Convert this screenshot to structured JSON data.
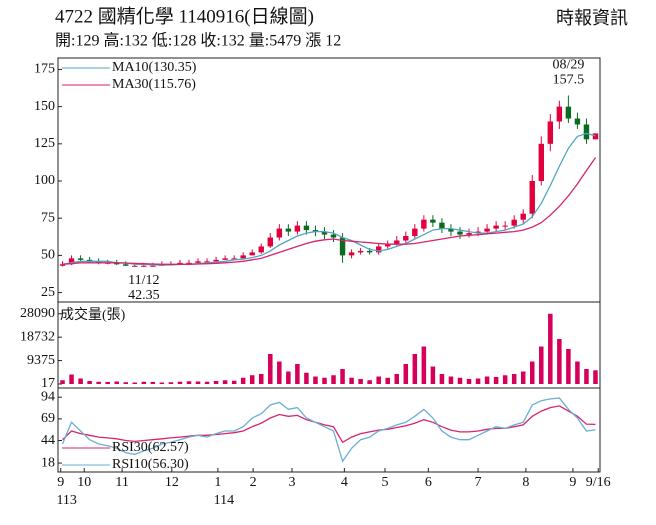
{
  "header": {
    "title": "4722  國精化學 1140916(日線圖)",
    "source": "時報資訊",
    "quote": "開:129 高:132 低:128 收:132 量:5479 漲 12"
  },
  "chart_data": [
    {
      "type": "candlestick",
      "up_color": "#e0003c",
      "down_color": "#0b6b1e",
      "open": [
        43,
        44,
        48,
        47,
        46,
        45,
        45,
        44,
        43,
        43,
        43,
        43,
        44,
        44,
        45,
        45,
        46,
        46,
        47,
        48,
        48,
        50,
        52,
        56,
        62,
        68,
        66,
        70,
        67,
        66,
        64,
        62,
        50,
        52,
        53,
        52,
        56,
        58,
        60,
        63,
        68,
        74,
        72,
        68,
        66,
        64,
        65,
        66,
        68,
        70,
        70,
        74,
        78,
        100,
        125,
        140,
        150,
        142,
        138,
        128
      ],
      "high": [
        46,
        50,
        50,
        49,
        48,
        47,
        47,
        46,
        45,
        45,
        45,
        46,
        46,
        47,
        47,
        48,
        48,
        49,
        50,
        50,
        52,
        54,
        58,
        65,
        71,
        71,
        73,
        73,
        70,
        69,
        67,
        65,
        54,
        55,
        55,
        58,
        60,
        63,
        66,
        71,
        77,
        77,
        75,
        71,
        69,
        68,
        69,
        71,
        73,
        73,
        77,
        81,
        104,
        130,
        145,
        154,
        157.5,
        146,
        142,
        132
      ],
      "low": [
        42.5,
        43.5,
        46,
        45,
        44,
        44,
        43.5,
        42.8,
        42.6,
        42.35,
        42.6,
        43,
        43.2,
        44,
        44,
        45,
        45,
        46,
        47,
        47,
        47.5,
        50.5,
        51,
        55,
        60,
        63,
        64,
        64,
        63,
        61,
        59,
        45,
        48,
        50.5,
        50.5,
        50.5,
        54.5,
        56.5,
        58.5,
        61,
        66,
        69,
        65,
        63,
        61,
        62,
        63,
        64,
        66,
        67,
        68,
        71,
        75,
        97,
        120,
        135,
        139,
        135,
        125,
        128
      ],
      "close": [
        44,
        48,
        47,
        46,
        45,
        45,
        44,
        43,
        43,
        43,
        43,
        44,
        44,
        45,
        45,
        46,
        46,
        47,
        48,
        48,
        50,
        52,
        56,
        62,
        68,
        66,
        70,
        67,
        66,
        64,
        62,
        50,
        52,
        53,
        52,
        56,
        58,
        60,
        63,
        68,
        74,
        72,
        68,
        66,
        64,
        65,
        66,
        68,
        70,
        70,
        74,
        78,
        100,
        125,
        140,
        150,
        142,
        138,
        128,
        132
      ],
      "series": [
        {
          "name": "MA10(130.35)",
          "color": "#4ea6c4",
          "values": [
            44,
            45,
            46,
            46,
            46,
            46,
            45,
            45,
            44,
            44,
            43.5,
            43.5,
            43.5,
            44,
            44,
            44.5,
            45,
            45.5,
            46,
            47,
            47.5,
            48.5,
            50,
            53,
            57,
            60,
            63,
            65,
            66,
            66,
            65,
            62,
            60,
            57,
            54,
            53,
            54,
            56,
            58,
            61,
            64,
            67,
            68,
            68,
            67,
            66,
            65,
            65,
            66,
            67,
            69,
            71,
            76,
            85,
            97,
            110,
            122,
            130,
            132,
            130.35
          ]
        },
        {
          "name": "MA30(115.76)",
          "color": "#d6246e",
          "values": [
            44,
            44.5,
            45,
            45,
            45,
            45,
            45,
            44.8,
            44.6,
            44.4,
            44.2,
            44,
            44,
            44,
            44,
            44.2,
            44.4,
            44.7,
            45,
            45.5,
            46,
            47,
            48,
            50,
            52,
            54,
            56,
            58,
            59.5,
            60.5,
            61,
            60,
            59.5,
            59,
            58.5,
            58,
            57.5,
            57.5,
            57.5,
            58,
            59,
            60,
            61,
            62,
            63,
            63.5,
            64,
            64.5,
            65,
            65.5,
            66,
            67,
            69,
            72,
            77,
            83,
            90,
            98,
            107,
            115.76
          ]
        }
      ],
      "annotations": [
        {
          "text": "08/29",
          "value": 157.5
        },
        {
          "text": "11/12",
          "value": 42.35
        }
      ],
      "xlim": [
        0,
        60
      ],
      "ylim": [
        20,
        180
      ],
      "yticks": [
        25,
        50,
        75,
        100,
        125,
        150,
        175
      ]
    },
    {
      "type": "bar",
      "title": "成交量(張)",
      "color": "#d6005a",
      "values": [
        1500,
        3800,
        2200,
        1200,
        900,
        800,
        1000,
        700,
        600,
        900,
        800,
        600,
        700,
        900,
        1100,
        1000,
        900,
        1200,
        1500,
        1300,
        2500,
        3500,
        4000,
        12000,
        9000,
        5000,
        8000,
        4500,
        3000,
        2500,
        3500,
        6000,
        2500,
        2000,
        1500,
        3000,
        2500,
        4000,
        8000,
        12000,
        15000,
        7000,
        4000,
        3000,
        2500,
        2000,
        2200,
        3000,
        2800,
        3500,
        4000,
        5000,
        9000,
        15000,
        28090,
        18000,
        14000,
        9000,
        6000,
        5479
      ],
      "xlim": [
        0,
        60
      ],
      "ylim": [
        0,
        32000
      ],
      "yticks": [
        17,
        9375,
        18732,
        28090
      ]
    },
    {
      "type": "line",
      "series": [
        {
          "name": "RSI30(62.57)",
          "color": "#d6246e",
          "values": [
            45,
            55,
            52,
            50,
            48,
            47,
            46,
            44,
            43,
            44,
            45,
            46,
            47,
            48,
            49,
            50,
            50,
            51,
            52,
            53,
            55,
            60,
            64,
            70,
            74,
            72,
            73,
            68,
            65,
            62,
            60,
            42,
            48,
            52,
            54,
            56,
            57,
            59,
            61,
            64,
            68,
            65,
            60,
            56,
            54,
            54,
            55,
            57,
            58,
            58,
            60,
            62,
            72,
            78,
            82,
            84,
            78,
            72,
            63,
            62.57
          ]
        },
        {
          "name": "RSI10(56.30)",
          "color": "#6aaed6",
          "values": [
            40,
            65,
            55,
            45,
            40,
            38,
            35,
            30,
            28,
            32,
            35,
            40,
            42,
            45,
            48,
            50,
            48,
            52,
            55,
            55,
            60,
            70,
            75,
            85,
            88,
            80,
            82,
            70,
            65,
            60,
            55,
            20,
            35,
            45,
            48,
            55,
            58,
            62,
            65,
            72,
            80,
            70,
            55,
            48,
            45,
            45,
            50,
            55,
            60,
            58,
            62,
            65,
            85,
            90,
            92,
            93,
            80,
            70,
            55,
            56.3
          ]
        }
      ],
      "xlim": [
        0,
        60
      ],
      "ylim": [
        10,
        100
      ],
      "yticks": [
        18,
        44,
        69,
        94
      ],
      "xticks": [
        {
          "value": 0.3,
          "label": "9"
        },
        {
          "value": 2.9,
          "label": "10"
        },
        {
          "value": 7.1,
          "label": "11"
        },
        {
          "value": 12.6,
          "label": "12"
        },
        {
          "value": 17.7,
          "label": "1"
        },
        {
          "value": 21.6,
          "label": "2"
        },
        {
          "value": 25.9,
          "label": "3"
        },
        {
          "value": 31.7,
          "label": "4"
        },
        {
          "value": 36.2,
          "label": "5"
        },
        {
          "value": 41,
          "label": "6"
        },
        {
          "value": 46.5,
          "label": "7"
        },
        {
          "value": 51.8,
          "label": "8"
        },
        {
          "value": 57,
          "label": "9"
        },
        {
          "value": 59.8,
          "label": "9/16"
        }
      ],
      "year_ticks": [
        {
          "value": 0.3,
          "label": "113"
        },
        {
          "value": 17.7,
          "label": "114"
        }
      ]
    }
  ]
}
